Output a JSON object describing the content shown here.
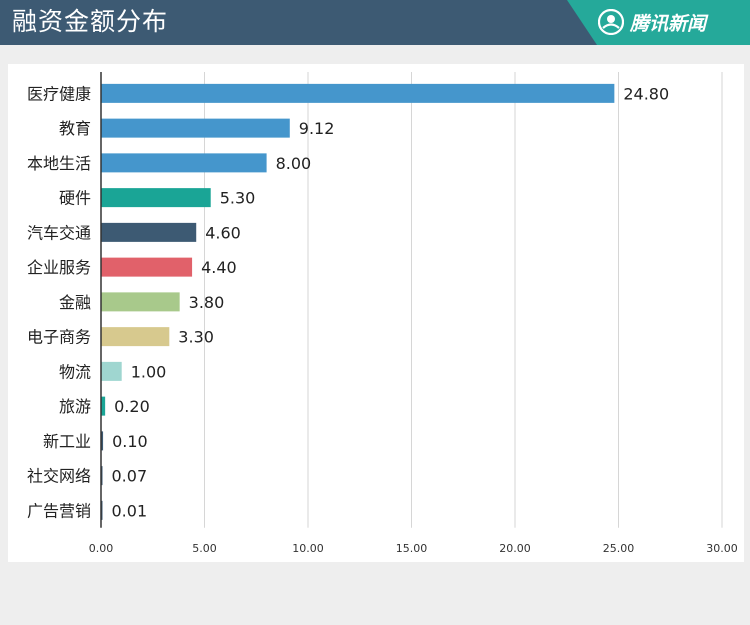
{
  "header": {
    "title": "融资金额分布",
    "brand": "腾讯新闻",
    "brand_icon": "tencent-news-logo",
    "background": "#3d5a73",
    "brand_background": "#25a99a"
  },
  "chart_data": {
    "type": "bar",
    "orientation": "horizontal",
    "title": "",
    "xlabel": "",
    "ylabel": "",
    "categories": [
      "医疗健康",
      "教育",
      "本地生活",
      "硬件",
      "汽车交通",
      "企业服务",
      "金融",
      "电子商务",
      "物流",
      "旅游",
      "新工业",
      "社交网络",
      "广告营销"
    ],
    "values": [
      24.8,
      9.12,
      8.0,
      5.3,
      4.6,
      4.4,
      3.8,
      3.3,
      1.0,
      0.2,
      0.1,
      0.07,
      0.01
    ],
    "value_labels": [
      "24.80",
      "9.12",
      "8.00",
      "5.30",
      "4.60",
      "4.40",
      "3.80",
      "3.30",
      "1.00",
      "0.20",
      "0.10",
      "0.07",
      "0.01"
    ],
    "colors": [
      "#4596cc",
      "#4596cc",
      "#4596cc",
      "#1aa596",
      "#3d5a73",
      "#e1616a",
      "#a8c98b",
      "#d7c98e",
      "#9fd6d0",
      "#1aa596",
      "#3d5a73",
      "#3d5a73",
      "#3d5a73"
    ],
    "xlim": [
      0,
      30
    ],
    "xticks": [
      0,
      5,
      10,
      15,
      20,
      25,
      30
    ],
    "xtick_labels": [
      "0.00",
      "5.00",
      "10.00",
      "15.00",
      "20.00",
      "25.00",
      "30.00"
    ],
    "grid": true,
    "legend": "none"
  }
}
